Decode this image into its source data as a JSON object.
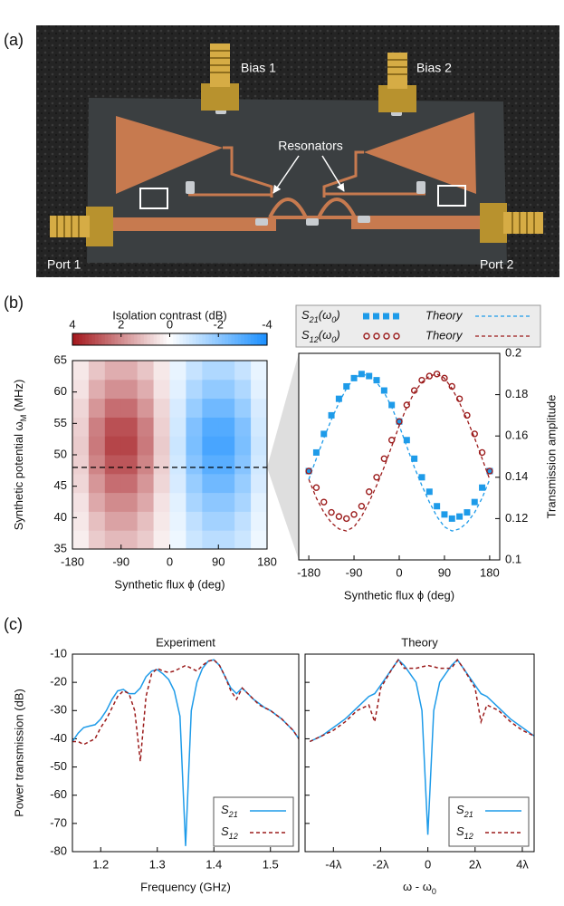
{
  "panel_labels": [
    "(a)",
    "(b)",
    "(c)"
  ],
  "photo": {
    "labels": [
      "Bias 1",
      "Bias 2",
      "Resonators",
      "Port 1",
      "Port 2"
    ]
  },
  "chart_data": [
    {
      "type": "heatmap",
      "colorbar_title": "Isolation contrast (dB)",
      "xlabel": "Synthetic flux ϕ (deg)",
      "ylabel": [
        "Synthetic potential ω",
        "M",
        " (MHz)"
      ],
      "x": [
        -165,
        -135,
        -105,
        -75,
        -45,
        -15,
        15,
        45,
        75,
        105,
        135,
        165
      ],
      "y": [
        36.5,
        39.5,
        42.5,
        45.5,
        48.5,
        51.5,
        54.5,
        57.5,
        60.5,
        63.5
      ],
      "z": [
        [
          0.3,
          0.9,
          1.2,
          1.2,
          0.9,
          0.3,
          -0.3,
          -0.9,
          -1.2,
          -1.2,
          -0.9,
          -0.3
        ],
        [
          0.4,
          1.1,
          1.6,
          1.6,
          1.1,
          0.4,
          -0.4,
          -1.1,
          -1.6,
          -1.6,
          -1.1,
          -0.4
        ],
        [
          0.5,
          1.5,
          2.0,
          2.0,
          1.5,
          0.5,
          -0.5,
          -1.5,
          -2.0,
          -2.0,
          -1.5,
          -0.5
        ],
        [
          0.7,
          1.8,
          2.5,
          2.5,
          1.8,
          0.7,
          -0.7,
          -1.8,
          -2.5,
          -2.5,
          -1.8,
          -0.7
        ],
        [
          0.8,
          2.1,
          2.9,
          2.9,
          2.1,
          0.8,
          -0.8,
          -2.1,
          -2.9,
          -2.9,
          -2.1,
          -0.8
        ],
        [
          0.9,
          2.3,
          3.2,
          3.2,
          2.3,
          0.9,
          -0.9,
          -2.3,
          -3.2,
          -3.2,
          -2.3,
          -0.9
        ],
        [
          0.8,
          2.2,
          3.0,
          3.0,
          2.2,
          0.8,
          -0.8,
          -2.2,
          -3.0,
          -3.0,
          -2.2,
          -0.8
        ],
        [
          0.7,
          1.8,
          2.5,
          2.5,
          1.8,
          0.7,
          -0.7,
          -1.8,
          -2.5,
          -2.5,
          -1.8,
          -0.7
        ],
        [
          0.5,
          1.4,
          1.9,
          1.9,
          1.4,
          0.5,
          -0.5,
          -1.4,
          -1.9,
          -1.9,
          -1.4,
          -0.5
        ],
        [
          0.4,
          1.0,
          1.4,
          1.4,
          1.0,
          0.4,
          -0.4,
          -1.0,
          -1.4,
          -1.4,
          -1.0,
          -0.4
        ]
      ],
      "xlim": [
        -180,
        180
      ],
      "ylim": [
        35,
        65
      ],
      "xticks": [
        -180,
        -90,
        0,
        90,
        180
      ],
      "yticks": [
        35,
        40,
        45,
        50,
        55,
        60,
        65
      ],
      "clim": [
        4,
        -4
      ],
      "cticks": [
        4,
        2,
        0,
        -2,
        -4
      ],
      "colors": [
        "#a3161b",
        "#ffffff",
        "#1a8fff"
      ],
      "hline": 48
    },
    {
      "type": "scatter",
      "xlabel": "Synthetic flux ϕ (deg)",
      "ylabel": "Transmission amplitude",
      "x": [
        -180,
        -165,
        -150,
        -135,
        -120,
        -105,
        -90,
        -75,
        -60,
        -45,
        -30,
        -15,
        0,
        15,
        30,
        45,
        60,
        75,
        90,
        105,
        120,
        135,
        150,
        165,
        180
      ],
      "series": [
        {
          "name": [
            "S",
            "21",
            "(ω",
            "0",
            ")"
          ],
          "color": "#1e9be9",
          "style": "square",
          "values": [
            0.143,
            0.152,
            0.161,
            0.17,
            0.178,
            0.184,
            0.188,
            0.19,
            0.189,
            0.187,
            0.182,
            0.175,
            0.167,
            0.158,
            0.149,
            0.14,
            0.133,
            0.126,
            0.122,
            0.12,
            0.121,
            0.123,
            0.128,
            0.135,
            0.143
          ]
        },
        {
          "name": "Theory",
          "color": "#1e9be9",
          "style": "dashed",
          "values": [
            0.139,
            0.149,
            0.159,
            0.168,
            0.176,
            0.183,
            0.188,
            0.19,
            0.189,
            0.186,
            0.181,
            0.174,
            0.165,
            0.155,
            0.145,
            0.136,
            0.128,
            0.121,
            0.116,
            0.114,
            0.115,
            0.118,
            0.123,
            0.13,
            0.139
          ]
        },
        {
          "name": [
            "S",
            "12",
            "(ω",
            "0",
            ")"
          ],
          "color": "#9b1b1b",
          "style": "circle",
          "values": [
            0.143,
            0.135,
            0.128,
            0.123,
            0.121,
            0.12,
            0.122,
            0.126,
            0.133,
            0.14,
            0.149,
            0.158,
            0.167,
            0.175,
            0.182,
            0.187,
            0.189,
            0.19,
            0.188,
            0.184,
            0.178,
            0.17,
            0.161,
            0.152,
            0.143
          ]
        },
        {
          "name": "Theory",
          "color": "#9b1b1b",
          "style": "dashed",
          "values": [
            0.139,
            0.13,
            0.123,
            0.118,
            0.115,
            0.114,
            0.116,
            0.121,
            0.128,
            0.136,
            0.145,
            0.155,
            0.165,
            0.174,
            0.181,
            0.186,
            0.189,
            0.19,
            0.188,
            0.183,
            0.176,
            0.168,
            0.159,
            0.149,
            0.139
          ]
        }
      ],
      "xlim": [
        -200,
        200
      ],
      "ylim": [
        0.1,
        0.2
      ],
      "xticks": [
        -180,
        -90,
        0,
        90,
        180
      ],
      "yticks": [
        0.1,
        0.12,
        0.14,
        0.16,
        0.18,
        0.2
      ],
      "yaxis": "right",
      "legend": "top"
    },
    {
      "type": "line",
      "title": "Experiment",
      "xlabel": "Frequency (GHz)",
      "ylabel": "Power transmission (dB)",
      "x": [
        1.15,
        1.16,
        1.17,
        1.18,
        1.19,
        1.2,
        1.21,
        1.22,
        1.23,
        1.24,
        1.25,
        1.26,
        1.27,
        1.28,
        1.29,
        1.3,
        1.31,
        1.32,
        1.33,
        1.34,
        1.35,
        1.36,
        1.37,
        1.38,
        1.39,
        1.4,
        1.41,
        1.42,
        1.43,
        1.44,
        1.45,
        1.46,
        1.47,
        1.48,
        1.49,
        1.5,
        1.51,
        1.52,
        1.53,
        1.54,
        1.55
      ],
      "series": [
        {
          "name": [
            "S",
            "21"
          ],
          "color": "#1e9be9",
          "style": "solid",
          "values": [
            -41,
            -38,
            -36,
            -35.5,
            -35,
            -33,
            -30,
            -26,
            -23,
            -22.5,
            -24,
            -24,
            -22,
            -18,
            -16,
            -15.5,
            -17,
            -19,
            -23,
            -32,
            -78,
            -30,
            -20,
            -15,
            -12.5,
            -12,
            -14,
            -18,
            -22,
            -24,
            -22,
            -24,
            -26,
            -27.5,
            -29,
            -30,
            -31.5,
            -33,
            -35,
            -37,
            -40
          ]
        },
        {
          "name": [
            "S",
            "12"
          ],
          "color": "#9b1b1b",
          "style": "dashed",
          "values": [
            -41,
            -41,
            -42,
            -41,
            -40,
            -36,
            -33,
            -29,
            -25,
            -23,
            -24,
            -30,
            -48,
            -25,
            -17,
            -15,
            -16,
            -16.5,
            -16,
            -15,
            -14,
            -15,
            -16,
            -14,
            -12.5,
            -12,
            -14,
            -18,
            -23,
            -26,
            -22,
            -24,
            -26,
            -28,
            -29,
            -30,
            -31.5,
            -33,
            -35,
            -37,
            -40
          ]
        }
      ],
      "xlim": [
        1.15,
        1.55
      ],
      "ylim": [
        -80,
        -10
      ],
      "xticks": [
        1.2,
        1.3,
        1.4,
        1.5
      ],
      "yticks": [
        -80,
        -70,
        -60,
        -50,
        -40,
        -30,
        -20,
        -10
      ],
      "legend": "lower right"
    },
    {
      "type": "line",
      "title": "Theory",
      "xlabel": [
        "ω - ω",
        "0"
      ],
      "x": [
        -5,
        -4.5,
        -4,
        -3.5,
        -3,
        -2.5,
        -2.25,
        -2,
        -1.5,
        -1.25,
        -1,
        -0.5,
        -0.25,
        0,
        0.25,
        0.5,
        1,
        1.25,
        1.5,
        2,
        2.25,
        2.5,
        3,
        3.5,
        4,
        4.5
      ],
      "series": [
        {
          "name": [
            "S",
            "21"
          ],
          "color": "#1e9be9",
          "style": "solid",
          "values": [
            -41,
            -39,
            -36,
            -33,
            -29,
            -25,
            -24,
            -21,
            -15,
            -12,
            -14,
            -20,
            -30,
            -74,
            -30,
            -20,
            -14,
            -12,
            -15,
            -21,
            -24,
            -25,
            -29,
            -33,
            -36,
            -39
          ]
        },
        {
          "name": [
            "S",
            "12"
          ],
          "color": "#9b1b1b",
          "style": "dashed",
          "values": [
            -41,
            -39,
            -37,
            -34,
            -30,
            -28,
            -34,
            -22,
            -15,
            -12,
            -15,
            -15,
            -14.5,
            -14,
            -14.5,
            -15,
            -15,
            -12,
            -15,
            -22,
            -34,
            -28,
            -30,
            -34,
            -37,
            -39
          ]
        }
      ],
      "xlim": [
        -5.2,
        4.5
      ],
      "ylim": [
        -80,
        -10
      ],
      "xticks": [
        {
          "value": -4,
          "label": "-4λ"
        },
        {
          "value": -2,
          "label": "-2λ"
        },
        0,
        {
          "value": 2,
          "label": "2λ"
        },
        {
          "value": 4,
          "label": "4λ"
        }
      ],
      "yticks": [
        -80,
        -70,
        -60,
        -50,
        -40,
        -30,
        -20,
        -10
      ],
      "show_ytick_labels": false,
      "legend": "lower right"
    }
  ]
}
